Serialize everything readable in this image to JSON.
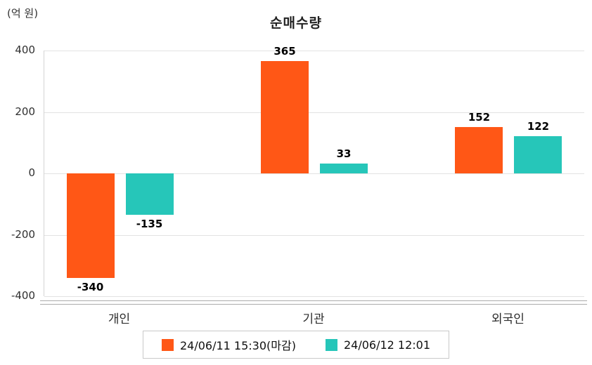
{
  "header": {
    "title": "순매수량",
    "unit_label": "(억 원)"
  },
  "chart_data": {
    "type": "bar",
    "title": "순매수량",
    "ylabel": "(억 원)",
    "categories": [
      "개인",
      "기관",
      "외국인"
    ],
    "series": [
      {
        "name": "24/06/11 15:30(마감)",
        "color": "#FF5716",
        "values": [
          -340,
          365,
          152
        ]
      },
      {
        "name": "24/06/12 12:01",
        "color": "#26C6B9",
        "values": [
          -135,
          33,
          122
        ]
      }
    ],
    "yticks": [
      400,
      200,
      0,
      -200,
      -400
    ],
    "ylim": [
      -400,
      400
    ],
    "grid": true,
    "legend_position": "bottom"
  },
  "legend": {
    "items": [
      {
        "label": "24/06/11 15:30(마감)",
        "color": "#FF5716"
      },
      {
        "label": "24/06/12 12:01",
        "color": "#26C6B9"
      }
    ]
  }
}
